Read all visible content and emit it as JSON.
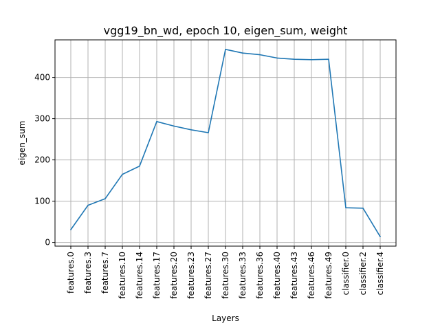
{
  "chart_data": {
    "type": "line",
    "title": "vgg19_bn_wd, epoch 10, eigen_sum, weight",
    "xlabel": "Layers",
    "ylabel": "eigen_sum",
    "categories": [
      "features.0",
      "features.3",
      "features.7",
      "features.10",
      "features.14",
      "features.17",
      "features.20",
      "features.23",
      "features.27",
      "features.30",
      "features.33",
      "features.36",
      "features.40",
      "features.43",
      "features.46",
      "features.49",
      "classifier.0",
      "classifier.2",
      "classifier.4"
    ],
    "series": [
      {
        "name": "eigen_sum",
        "color": "#1f77b4",
        "values": [
          31,
          90,
          106,
          165,
          185,
          293,
          282,
          273,
          266,
          468,
          459,
          455,
          447,
          444,
          443,
          444,
          84,
          83,
          14
        ]
      }
    ],
    "yticks": [
      0,
      100,
      200,
      300,
      400
    ],
    "ylim": [
      -9,
      491
    ],
    "grid": true
  }
}
